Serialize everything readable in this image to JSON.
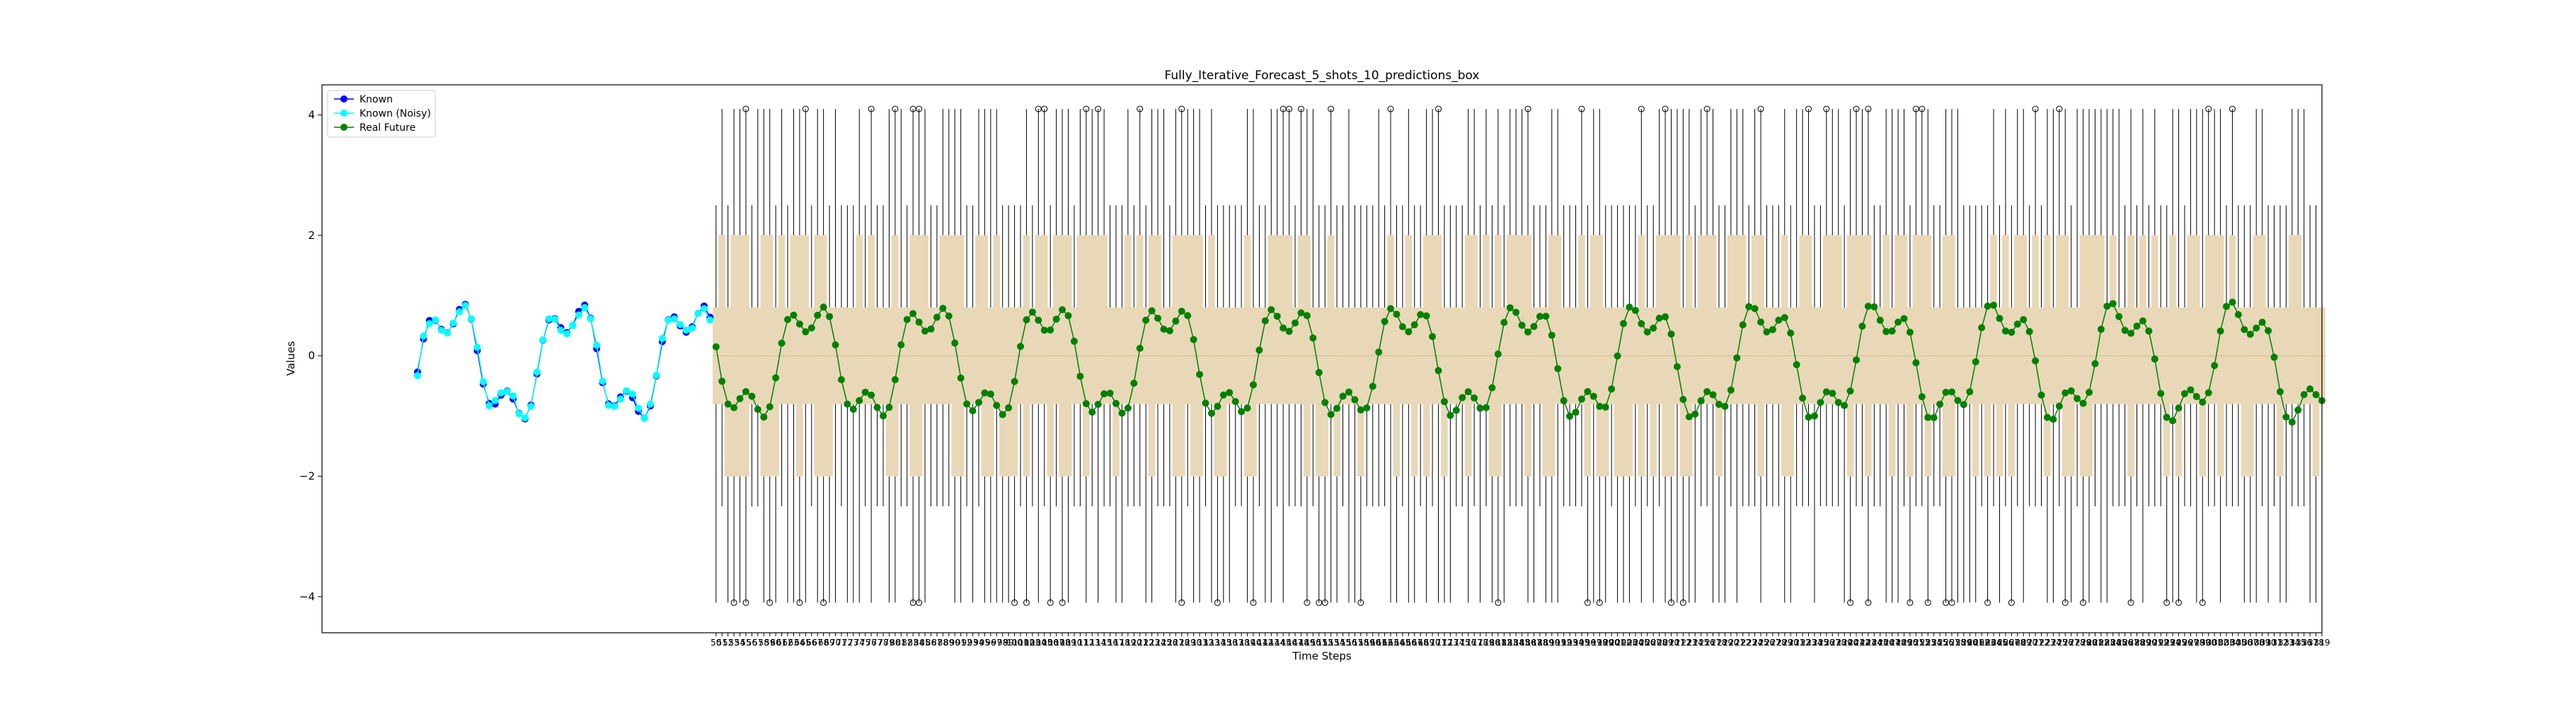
{
  "chart_data": {
    "type": "line",
    "title": "Fully_Iterative_Forecast_5_shots_10_predictions_box",
    "xlabel": "Time Steps",
    "ylabel": "Values",
    "ylim": [
      -4.6,
      4.5
    ],
    "y_ticks": [
      -4,
      -2,
      0,
      2,
      4
    ],
    "legend_position": "upper left",
    "signal": {
      "mean": -0.1,
      "a1": 0.85,
      "period1": 20,
      "a2": 0.35,
      "period2": 6.7,
      "phase": -0.2
    },
    "series": [
      {
        "name": "Known",
        "x_start": 0,
        "x_end": 49,
        "color": "#0000ff",
        "marker": "circle"
      },
      {
        "name": "Known (Noisy)",
        "x_start": 0,
        "x_end": 49,
        "color": "#00ffff",
        "marker": "circle"
      },
      {
        "name": "Real Future",
        "x_start": 50,
        "x_end": 319,
        "color": "#008000",
        "marker": "circle"
      }
    ],
    "boxplot": {
      "x_start": 50,
      "x_end": 319,
      "box_fill": "#e8d8b8",
      "box_low": -0.8,
      "box_high": 0.8,
      "whisker_low": -2.5,
      "whisker_high": 2.5,
      "cap_high": 4.1,
      "cap_low": -4.1
    },
    "colors": {
      "known": "#0000ff",
      "noisy": "#00ffff",
      "future": "#008000",
      "box_edge": "#000000",
      "box_fill": "#e8d8b8"
    }
  }
}
